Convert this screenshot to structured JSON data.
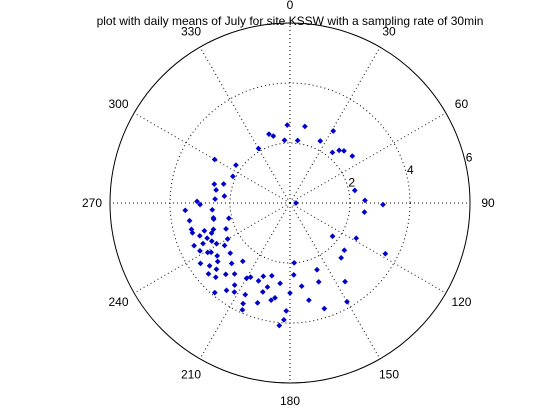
{
  "chart_data": {
    "type": "scatter",
    "polar": true,
    "title": "plot with daily means of July for site KSSW with a sampling rate of 30min",
    "angle_direction": "clockwise",
    "angle_zero": "top",
    "angle_ticks": [
      "0",
      "30",
      "60",
      "90",
      "120",
      "150",
      "180",
      "210",
      "240",
      "270",
      "300",
      "330"
    ],
    "radial_ticks": [
      "2",
      "4",
      "6"
    ],
    "rlim": [
      0,
      6
    ],
    "grid": true,
    "marker": "diamond",
    "color": "#0000cc",
    "points_theta_r": [
      [
        90,
        0.2
      ],
      [
        330,
        2.1
      ],
      [
        343,
        2.4
      ],
      [
        346,
        2.3
      ],
      [
        355,
        2.1
      ],
      [
        358,
        2.6
      ],
      [
        7,
        2.1
      ],
      [
        11,
        2.6
      ],
      [
        26,
        2.3
      ],
      [
        31,
        2.8
      ],
      [
        40,
        2.2
      ],
      [
        43,
        2.4
      ],
      [
        46,
        2.5
      ],
      [
        53,
        2.6
      ],
      [
        79,
        2.2
      ],
      [
        88,
        2.5
      ],
      [
        91,
        3.1
      ],
      [
        97,
        2.5
      ],
      [
        128,
        1.8
      ],
      [
        118,
        2.5
      ],
      [
        131,
        2.4
      ],
      [
        118,
        3.6
      ],
      [
        137,
        2.5
      ],
      [
        145,
        3.2
      ],
      [
        150,
        3.8
      ],
      [
        158,
        2.4
      ],
      [
        160,
        2.8
      ],
      [
        162,
        3.7
      ],
      [
        172,
        2.8
      ],
      [
        169,
        3.3
      ],
      [
        176,
        2.0
      ],
      [
        177,
        2.4
      ],
      [
        180,
        3.0
      ],
      [
        182,
        3.6
      ],
      [
        183,
        3.9
      ],
      [
        185,
        4.1
      ],
      [
        187,
        2.7
      ],
      [
        189,
        3.2
      ],
      [
        191,
        3.3
      ],
      [
        194,
        2.5
      ],
      [
        195,
        2.9
      ],
      [
        197,
        3.1
      ],
      [
        198,
        3.5
      ],
      [
        200,
        2.6
      ],
      [
        202,
        2.8
      ],
      [
        204,
        3.9
      ],
      [
        205,
        3.7
      ],
      [
        206,
        3.4
      ],
      [
        208,
        2.8
      ],
      [
        210,
        2.9
      ],
      [
        212,
        3.5
      ],
      [
        214,
        3.3
      ],
      [
        216,
        3.6
      ],
      [
        218,
        3.0
      ],
      [
        219,
        2.5
      ],
      [
        220,
        3.9
      ],
      [
        222,
        3.2
      ],
      [
        224,
        2.8
      ],
      [
        225,
        3.5
      ],
      [
        228,
        3.3
      ],
      [
        229,
        3.6
      ],
      [
        230,
        2.6
      ],
      [
        231,
        3.1
      ],
      [
        232,
        3.4
      ],
      [
        234,
        3.0
      ],
      [
        236,
        3.6
      ],
      [
        237,
        2.6
      ],
      [
        238,
        3.1
      ],
      [
        239,
        3.2
      ],
      [
        240,
        2.4
      ],
      [
        241,
        2.8
      ],
      [
        242,
        3.4
      ],
      [
        244,
        2.9
      ],
      [
        245,
        3.2
      ],
      [
        246,
        3.5
      ],
      [
        247,
        3.0
      ],
      [
        248,
        2.3
      ],
      [
        249,
        2.8
      ],
      [
        250,
        3.2
      ],
      [
        251,
        2.7
      ],
      [
        252,
        3.0
      ],
      [
        253,
        3.4
      ],
      [
        255,
        3.4
      ],
      [
        256,
        2.1
      ],
      [
        258,
        2.6
      ],
      [
        259,
        2.6
      ],
      [
        260,
        3.4
      ],
      [
        265,
        2.6
      ],
      [
        266,
        3.5
      ],
      [
        269,
        3.0
      ],
      [
        271,
        3.1
      ],
      [
        273,
        2.5
      ],
      [
        276,
        2.2
      ],
      [
        280,
        2.5
      ],
      [
        284,
        2.6
      ],
      [
        286,
        2.3
      ],
      [
        295,
        2.1
      ],
      [
        300,
        2.9
      ],
      [
        305,
        2.2
      ]
    ]
  }
}
